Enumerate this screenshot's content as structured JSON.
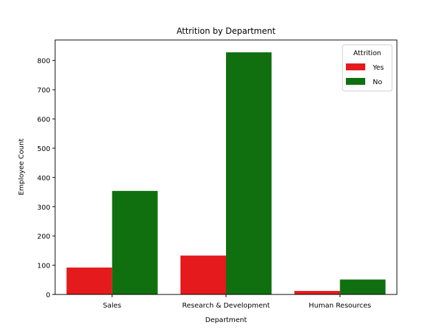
{
  "chart_data": {
    "type": "bar",
    "title": "Attrition by Department",
    "xlabel": "Department",
    "ylabel": "Employee Count",
    "categories": [
      "Sales",
      "Research & Development",
      "Human Resources"
    ],
    "series": [
      {
        "name": "Yes",
        "color": "#e41a1c",
        "values": [
          92,
          133,
          12
        ]
      },
      {
        "name": "No",
        "color": "#107010",
        "values": [
          354,
          828,
          51
        ]
      }
    ],
    "ylim": [
      0,
      870
    ],
    "yticks": [
      0,
      100,
      200,
      300,
      400,
      500,
      600,
      700,
      800
    ],
    "grid": false,
    "legend": {
      "title": "Attrition",
      "placement": "top-right"
    }
  }
}
